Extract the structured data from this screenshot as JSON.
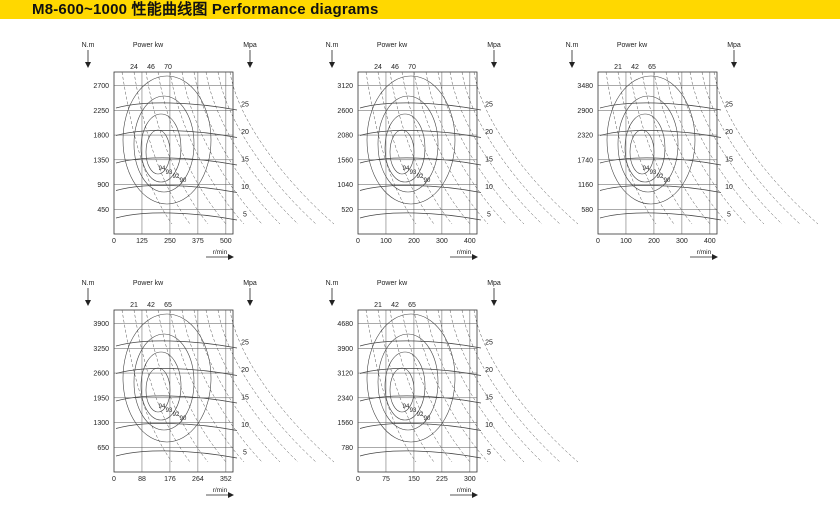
{
  "header": {
    "title": "M8-600~1000 性能曲线图  Performance diagrams",
    "background": "#ffd800"
  },
  "chart_data": [
    {
      "type": "line",
      "y_axis_unit": "N.m",
      "power_label": "Power kw",
      "pressure_unit": "Mpa",
      "x_axis_unit": "r/min",
      "y_ticks": [
        "450",
        "900",
        "1350",
        "1800",
        "2250",
        "2700"
      ],
      "x_ticks": [
        "0",
        "125",
        "250",
        "375",
        "500"
      ],
      "pressure_ticks": [
        "5",
        "10",
        "15",
        "20",
        "25"
      ],
      "power_ticks": [
        "24",
        "46",
        "70"
      ],
      "efficiency_labels": [
        "94",
        "93",
        "92",
        "90"
      ]
    },
    {
      "type": "line",
      "y_axis_unit": "N.m",
      "power_label": "Power kw",
      "pressure_unit": "Mpa",
      "x_axis_unit": "r/min",
      "y_ticks": [
        "520",
        "1040",
        "1560",
        "2080",
        "2600",
        "3120"
      ],
      "x_ticks": [
        "0",
        "100",
        "200",
        "300",
        "400"
      ],
      "pressure_ticks": [
        "5",
        "10",
        "15",
        "20",
        "25"
      ],
      "power_ticks": [
        "24",
        "46",
        "70"
      ],
      "efficiency_labels": [
        "94",
        "93",
        "92",
        "90"
      ]
    },
    {
      "type": "line",
      "y_axis_unit": "N.m",
      "power_label": "Power kw",
      "pressure_unit": "Mpa",
      "x_axis_unit": "r/min",
      "y_ticks": [
        "580",
        "1160",
        "1740",
        "2320",
        "2900",
        "3480"
      ],
      "x_ticks": [
        "0",
        "100",
        "200",
        "300",
        "400"
      ],
      "pressure_ticks": [
        "5",
        "10",
        "15",
        "20",
        "25"
      ],
      "power_ticks": [
        "21",
        "42",
        "65"
      ],
      "efficiency_labels": [
        "94",
        "93",
        "92",
        "90"
      ]
    },
    {
      "type": "line",
      "y_axis_unit": "N.m",
      "power_label": "Power kw",
      "pressure_unit": "Mpa",
      "x_axis_unit": "r/min",
      "y_ticks": [
        "650",
        "1300",
        "1950",
        "2600",
        "3250",
        "3900"
      ],
      "x_ticks": [
        "0",
        "88",
        "176",
        "264",
        "352"
      ],
      "pressure_ticks": [
        "5",
        "10",
        "15",
        "20",
        "25"
      ],
      "power_ticks": [
        "21",
        "42",
        "65"
      ],
      "efficiency_labels": [
        "94",
        "93",
        "92",
        "90"
      ]
    },
    {
      "type": "line",
      "y_axis_unit": "N.m",
      "power_label": "Power kw",
      "pressure_unit": "Mpa",
      "x_axis_unit": "r/min",
      "y_ticks": [
        "780",
        "1560",
        "2340",
        "3120",
        "3900",
        "4680"
      ],
      "x_ticks": [
        "0",
        "75",
        "150",
        "225",
        "300"
      ],
      "pressure_ticks": [
        "5",
        "10",
        "15",
        "20",
        "25"
      ],
      "power_ticks": [
        "21",
        "42",
        "65"
      ],
      "efficiency_labels": [
        "94",
        "93",
        "92",
        "90"
      ]
    }
  ]
}
